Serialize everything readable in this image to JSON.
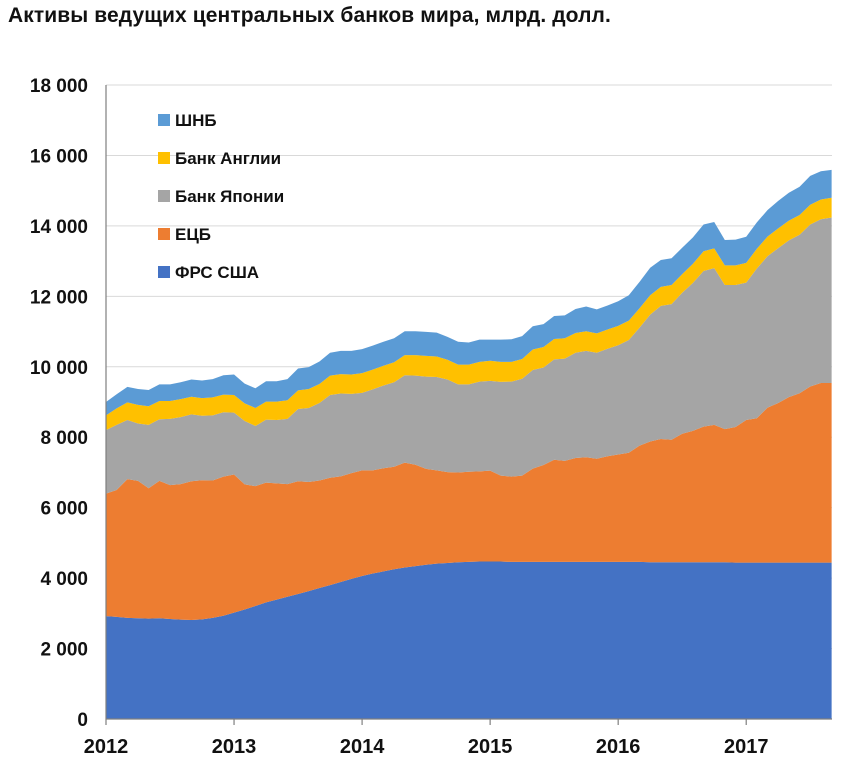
{
  "chart_data": {
    "type": "area",
    "stacked": true,
    "title": "Активы ведущих центральных банков мира, млрд. долл.",
    "xlabel": "",
    "ylabel": "",
    "ylim": [
      0,
      18000
    ],
    "xlim": [
      2012.0,
      2017.67
    ],
    "grid": true,
    "legend_position": "top-left",
    "y_ticks": [
      0,
      2000,
      4000,
      6000,
      8000,
      10000,
      12000,
      14000,
      16000,
      18000
    ],
    "y_tick_labels": [
      "0",
      "2 000",
      "4 000",
      "6 000",
      "8 000",
      "10 000",
      "12 000",
      "14 000",
      "16 000",
      "18 000"
    ],
    "x_ticks": [
      2012,
      2013,
      2014,
      2015,
      2016,
      2017
    ],
    "x_tick_labels": [
      "2012",
      "2013",
      "2014",
      "2015",
      "2016",
      "2017"
    ],
    "legend_order": [
      "ШНБ",
      "Банк Англии",
      "Банк Японии",
      "ЕЦБ",
      "ФРС США"
    ],
    "x": [
      2012.0,
      2012.083,
      2012.167,
      2012.25,
      2012.333,
      2012.417,
      2012.5,
      2012.583,
      2012.667,
      2012.75,
      2012.833,
      2012.917,
      2013.0,
      2013.083,
      2013.167,
      2013.25,
      2013.333,
      2013.417,
      2013.5,
      2013.583,
      2013.667,
      2013.75,
      2013.833,
      2013.917,
      2014.0,
      2014.083,
      2014.167,
      2014.25,
      2014.333,
      2014.417,
      2014.5,
      2014.583,
      2014.667,
      2014.75,
      2014.833,
      2014.917,
      2015.0,
      2015.083,
      2015.167,
      2015.25,
      2015.333,
      2015.417,
      2015.5,
      2015.583,
      2015.667,
      2015.75,
      2015.833,
      2015.917,
      2016.0,
      2016.083,
      2016.167,
      2016.25,
      2016.333,
      2016.417,
      2016.5,
      2016.583,
      2016.667,
      2016.75,
      2016.833,
      2016.917,
      2017.0,
      2017.083,
      2017.167,
      2017.25,
      2017.333,
      2017.417,
      2017.5,
      2017.583,
      2017.667
    ],
    "series": [
      {
        "name": "ФРС США",
        "color": "#4472C4",
        "values": [
          2920,
          2900,
          2870,
          2860,
          2850,
          2860,
          2840,
          2820,
          2810,
          2830,
          2870,
          2930,
          3020,
          3110,
          3210,
          3310,
          3390,
          3470,
          3550,
          3630,
          3720,
          3800,
          3890,
          3980,
          4060,
          4130,
          4190,
          4250,
          4300,
          4340,
          4380,
          4410,
          4430,
          4450,
          4460,
          4470,
          4470,
          4470,
          4460,
          4460,
          4460,
          4460,
          4460,
          4460,
          4460,
          4460,
          4460,
          4460,
          4460,
          4460,
          4460,
          4450,
          4450,
          4450,
          4450,
          4450,
          4450,
          4450,
          4450,
          4440,
          4440,
          4440,
          4440,
          4440,
          4440,
          4440,
          4440,
          4440,
          4440
        ]
      },
      {
        "name": "ЕЦБ",
        "color": "#ED7D31",
        "values": [
          3480,
          3600,
          3940,
          3900,
          3700,
          3900,
          3800,
          3850,
          3940,
          3950,
          3900,
          3950,
          3920,
          3550,
          3400,
          3400,
          3300,
          3200,
          3200,
          3100,
          3050,
          3050,
          3000,
          3000,
          3000,
          2930,
          2930,
          2910,
          2980,
          2880,
          2720,
          2650,
          2580,
          2550,
          2560,
          2560,
          2580,
          2440,
          2420,
          2450,
          2650,
          2750,
          2900,
          2870,
          2950,
          2970,
          2930,
          3000,
          3050,
          3100,
          3300,
          3430,
          3500,
          3480,
          3650,
          3730,
          3850,
          3900,
          3780,
          3850,
          4050,
          4100,
          4400,
          4530,
          4700,
          4810,
          5000,
          5100,
          5100
        ]
      },
      {
        "name": "Банк Японии",
        "color": "#A5A5A5",
        "values": [
          1800,
          1850,
          1680,
          1630,
          1800,
          1750,
          1880,
          1900,
          1900,
          1830,
          1850,
          1830,
          1760,
          1800,
          1710,
          1790,
          1800,
          1850,
          2050,
          2100,
          2200,
          2350,
          2350,
          2250,
          2200,
          2300,
          2350,
          2400,
          2480,
          2530,
          2620,
          2650,
          2630,
          2500,
          2480,
          2550,
          2550,
          2660,
          2700,
          2750,
          2800,
          2770,
          2850,
          2900,
          2990,
          3020,
          3010,
          3050,
          3100,
          3200,
          3350,
          3600,
          3780,
          3850,
          4000,
          4200,
          4420,
          4450,
          4090,
          4030,
          3900,
          4250,
          4300,
          4400,
          4450,
          4500,
          4600,
          4650,
          4700
        ]
      },
      {
        "name": "Банк Англии",
        "color": "#FFC000",
        "values": [
          420,
          470,
          500,
          530,
          530,
          520,
          510,
          510,
          500,
          500,
          510,
          500,
          500,
          500,
          510,
          510,
          520,
          530,
          530,
          540,
          540,
          550,
          550,
          550,
          560,
          560,
          560,
          570,
          570,
          580,
          590,
          580,
          560,
          560,
          560,
          560,
          570,
          570,
          560,
          560,
          580,
          580,
          580,
          580,
          560,
          560,
          550,
          550,
          550,
          550,
          550,
          550,
          540,
          540,
          530,
          540,
          560,
          560,
          560,
          560,
          560,
          560,
          560,
          560,
          560,
          560,
          560,
          560,
          560
        ]
      },
      {
        "name": "ШНБ",
        "color": "#5B9BD5",
        "values": [
          380,
          400,
          440,
          450,
          460,
          470,
          470,
          480,
          490,
          500,
          520,
          550,
          580,
          560,
          560,
          580,
          580,
          600,
          620,
          620,
          640,
          650,
          660,
          670,
          680,
          680,
          680,
          680,
          680,
          680,
          680,
          680,
          650,
          650,
          630,
          630,
          600,
          630,
          640,
          650,
          660,
          650,
          650,
          650,
          680,
          700,
          680,
          680,
          700,
          720,
          750,
          780,
          760,
          760,
          750,
          750,
          760,
          750,
          720,
          730,
          740,
          750,
          750,
          780,
          790,
          800,
          820,
          800,
          790
        ]
      }
    ]
  }
}
